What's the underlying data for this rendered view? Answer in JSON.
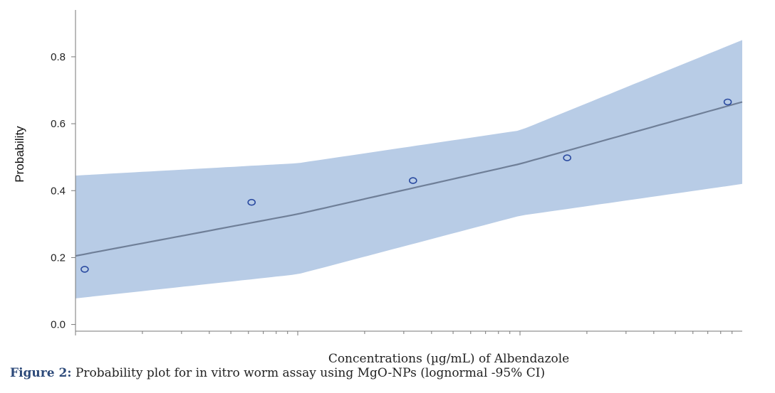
{
  "chart_data": {
    "type": "line",
    "title": "",
    "xlabel": "Concentrations (µg/mL) of Albendazole",
    "ylabel": "Probability",
    "x_scale": "log",
    "xlim": [
      1,
      1000
    ],
    "ylim": [
      -0.02,
      0.94
    ],
    "yticks": [
      0.0,
      0.2,
      0.4,
      0.6,
      0.8
    ],
    "ytick_labels": [
      "0.0",
      "0.2",
      "0.4",
      "0.6",
      "0.8"
    ],
    "x_tick_labels_shown": false,
    "grid": false,
    "legend": "none",
    "points": [
      {
        "x": 1.1,
        "y": 0.165
      },
      {
        "x": 6.2,
        "y": 0.365
      },
      {
        "x": 33,
        "y": 0.43
      },
      {
        "x": 163,
        "y": 0.498
      },
      {
        "x": 860,
        "y": 0.665
      }
    ],
    "fit_line": {
      "x": [
        1,
        10,
        100,
        1000
      ],
      "y": [
        0.205,
        0.33,
        0.48,
        0.665
      ]
    },
    "confidence_band": {
      "label": "95% CI",
      "x": [
        1,
        10,
        100,
        1000
      ],
      "lower": [
        0.078,
        0.15,
        0.325,
        0.42
      ],
      "upper": [
        0.445,
        0.482,
        0.58,
        0.85
      ]
    },
    "colors": {
      "band": "#b8cce6",
      "fit_line": "#6f7f98",
      "points": "#2a4aa0",
      "axis": "#777777"
    }
  },
  "caption": {
    "label": "Figure 2:",
    "text": " Probability plot for in vitro worm assay using MgO-NPs (lognormal -95% CI)"
  }
}
